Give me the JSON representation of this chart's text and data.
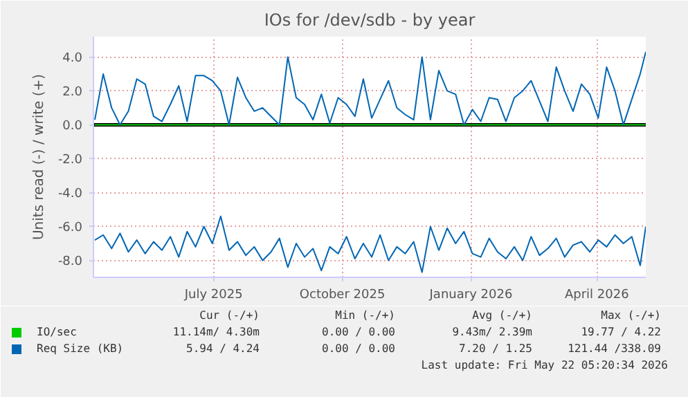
{
  "chart_data": {
    "type": "line",
    "title": "IOs for /dev/sdb - by year",
    "ylabel": "Units read (-) / write (+)",
    "x": [
      "2025-04-23",
      "2025-04-29",
      "2025-05-05",
      "2025-05-11",
      "2025-05-17",
      "2025-05-23",
      "2025-05-29",
      "2025-06-04",
      "2025-06-10",
      "2025-06-16",
      "2025-06-22",
      "2025-06-28",
      "2025-07-04",
      "2025-07-10",
      "2025-07-16",
      "2025-07-22",
      "2025-07-28",
      "2025-08-03",
      "2025-08-09",
      "2025-08-15",
      "2025-08-21",
      "2025-08-27",
      "2025-09-02",
      "2025-09-08",
      "2025-09-14",
      "2025-09-20",
      "2025-09-26",
      "2025-10-02",
      "2025-10-08",
      "2025-10-14",
      "2025-10-20",
      "2025-10-26",
      "2025-11-01",
      "2025-11-07",
      "2025-11-13",
      "2025-11-19",
      "2025-11-25",
      "2025-12-01",
      "2025-12-07",
      "2025-12-13",
      "2025-12-19",
      "2025-12-25",
      "2025-12-31",
      "2026-01-06",
      "2026-01-12",
      "2026-01-18",
      "2026-01-24",
      "2026-01-30",
      "2026-02-05",
      "2026-02-11",
      "2026-02-17",
      "2026-02-23",
      "2026-03-01",
      "2026-03-07",
      "2026-03-13",
      "2026-03-19",
      "2026-03-25",
      "2026-03-31",
      "2026-04-06",
      "2026-04-12",
      "2026-04-18",
      "2026-04-24",
      "2026-04-30",
      "2026-05-06",
      "2026-05-12",
      "2026-05-18",
      "2026-05-22"
    ],
    "series": [
      {
        "name": "IO/sec",
        "color": "#00cc00",
        "values": [
          0,
          0,
          0,
          0,
          0,
          0,
          0,
          0,
          0,
          0,
          0,
          0,
          0,
          0,
          0,
          0,
          0,
          0,
          0,
          0,
          0,
          0,
          0,
          0,
          0,
          0,
          0,
          0,
          0,
          0,
          0,
          0,
          0,
          0,
          0,
          0,
          0,
          0,
          0,
          0,
          0,
          0,
          0,
          0,
          0,
          0,
          0,
          0,
          0,
          0,
          0,
          0,
          0,
          0,
          0,
          0,
          0,
          0,
          0,
          0,
          0,
          0,
          0,
          0,
          0,
          0,
          0
        ]
      },
      {
        "name": "Req Size (KB)",
        "color": "#0066b3",
        "values": [
          0.3,
          3.0,
          1.0,
          0,
          0.8,
          2.7,
          2.4,
          0.5,
          0.2,
          1.2,
          2.3,
          0.2,
          2.9,
          2.9,
          2.6,
          2.0,
          0,
          2.8,
          1.6,
          0.8,
          1.0,
          0.5,
          0,
          4.0,
          1.6,
          1.2,
          0.3,
          1.8,
          0.1,
          1.6,
          1.2,
          0.5,
          2.7,
          0.4,
          1.5,
          2.6,
          1.0,
          0.6,
          0.3,
          4.0,
          0.3,
          3.2,
          2.0,
          1.8,
          0,
          0.9,
          0.2,
          1.6,
          1.5,
          0.2,
          1.6,
          2.0,
          2.6,
          1.4,
          0.2,
          3.4,
          2.0,
          0.8,
          2.4,
          1.8,
          0.4,
          3.4,
          2.0,
          0,
          1.5,
          3.0,
          4.3
        ]
      },
      {
        "color": "#0066b3",
        "values": [
          -6.8,
          -6.5,
          -7.3,
          -6.4,
          -7.5,
          -6.8,
          -7.6,
          -6.9,
          -7.4,
          -6.6,
          -7.8,
          -6.3,
          -7.2,
          -6.0,
          -7.0,
          -5.4,
          -7.4,
          -6.9,
          -7.7,
          -7.2,
          -8.0,
          -7.5,
          -6.7,
          -8.4,
          -7.0,
          -7.8,
          -7.3,
          -8.6,
          -7.2,
          -7.6,
          -6.6,
          -7.9,
          -7.0,
          -7.8,
          -6.5,
          -8.0,
          -7.2,
          -7.6,
          -6.9,
          -8.7,
          -6.0,
          -7.4,
          -6.1,
          -7.0,
          -6.3,
          -7.6,
          -7.8,
          -6.7,
          -7.5,
          -7.9,
          -7.2,
          -8.0,
          -6.6,
          -7.7,
          -7.3,
          -6.7,
          -7.8,
          -7.1,
          -6.9,
          -7.5,
          -6.8,
          -7.2,
          -6.5,
          -7.0,
          -6.6,
          -8.3,
          -6.0
        ]
      }
    ],
    "xlim": [
      "2025-04-22",
      "2026-05-22"
    ],
    "xticks": [
      {
        "value": "2025-07-17",
        "label": "July 2025"
      },
      {
        "value": "2025-10-17",
        "label": "October 2025"
      },
      {
        "value": "2026-01-17",
        "label": "January 2026"
      },
      {
        "value": "2026-04-17",
        "label": "April 2026"
      }
    ],
    "ylim": [
      -9.0,
      5.2
    ],
    "yticks": [
      {
        "value": -8,
        "label": "-8.0"
      },
      {
        "value": -6,
        "label": "-6.0"
      },
      {
        "value": -4,
        "label": "-4.0"
      },
      {
        "value": -2,
        "label": "-2.0"
      },
      {
        "value": 0,
        "label": "0.0"
      },
      {
        "value": 2,
        "label": "2.0"
      },
      {
        "value": 4,
        "label": "4.0"
      }
    ],
    "ref_lines": [
      {
        "axis": "y",
        "value": 0,
        "color": "#000000"
      }
    ],
    "grid": true,
    "legend": "bottom",
    "annotations": [
      "Cur (-/+)",
      "Min (-/+)",
      "Avg (-/+)",
      "Max (-/+)",
      "11.14m/ 4.30m",
      "0.00 / 0.00",
      "9.43m/ 2.39m",
      "19.77 / 4.22",
      "5.94 / 4.24",
      "0.00 / 0.00",
      "7.20 / 1.25",
      "121.44 /338.09",
      "Last update: Fri May 22 05:20:34 2026"
    ]
  }
}
